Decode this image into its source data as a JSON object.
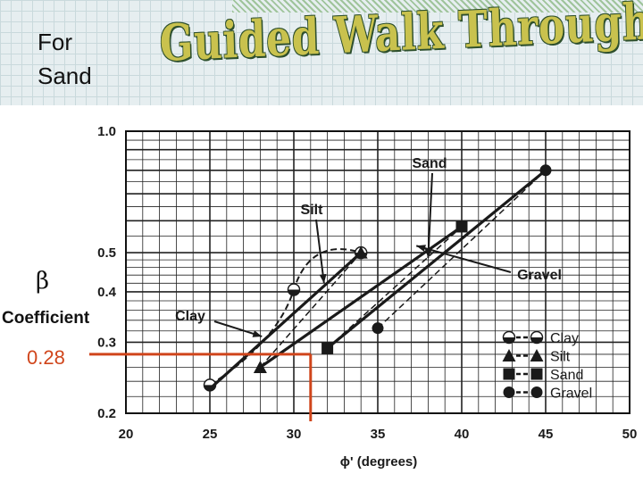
{
  "slide": {
    "corner_label": "For\nSand",
    "title": "Guided Walk Through",
    "beta_symbol": "β",
    "coefficient_label": "Coefficient",
    "answer_value": "0.28"
  },
  "colors": {
    "title_fill": "#c9c24e",
    "title_outline": "#2d4f2d",
    "answer_line": "#d0451b",
    "series_line": "#1a1a1a"
  },
  "chart_data": {
    "type": "line",
    "y_scale": "log",
    "xlim": [
      20,
      50
    ],
    "ylim": [
      0.2,
      1.0
    ],
    "x_ticks": [
      "20",
      "25",
      "30",
      "35",
      "40",
      "45",
      "50"
    ],
    "y_ticks": [
      {
        "value": 1.0,
        "label": "1.0"
      },
      {
        "value": 0.5,
        "label": "0.5"
      },
      {
        "value": 0.4,
        "label": "0.4"
      },
      {
        "value": 0.3,
        "label": "0.3"
      },
      {
        "value": 0.2,
        "label": "0.2"
      }
    ],
    "xlabel": "ϕ' (degrees)",
    "ylabel": "",
    "grid": true,
    "legend_position": "bottom-right",
    "series": [
      {
        "name": "Clay",
        "marker": "half-circle",
        "x": [
          25,
          30,
          34
        ],
        "y": [
          0.235,
          0.405,
          0.5
        ],
        "fit_from": [
          25,
          0.235
        ],
        "fit_to": [
          34,
          0.5
        ]
      },
      {
        "name": "Silt",
        "marker": "triangle",
        "x": [
          28,
          34
        ],
        "y": [
          0.26,
          0.5
        ],
        "fit_from": [
          25,
          0.23
        ],
        "fit_to": [
          34,
          0.5
        ]
      },
      {
        "name": "Sand",
        "marker": "square",
        "x": [
          32,
          40
        ],
        "y": [
          0.29,
          0.58
        ],
        "fit_from": [
          28,
          0.26
        ],
        "fit_to": [
          40,
          0.58
        ]
      },
      {
        "name": "Gravel",
        "marker": "circle",
        "x": [
          35,
          45
        ],
        "y": [
          0.325,
          0.8
        ],
        "fit_from": [
          32,
          0.29
        ],
        "fit_to": [
          45,
          0.8
        ]
      }
    ],
    "annotations": [
      {
        "text": "Sand",
        "target_series": "Sand"
      },
      {
        "text": "Silt",
        "target_series": "Silt"
      },
      {
        "text": "Clay",
        "target_series": "Clay"
      },
      {
        "text": "Gravel",
        "target_series": "Gravel"
      }
    ],
    "reading": {
      "x": 31,
      "y": 0.28
    }
  }
}
